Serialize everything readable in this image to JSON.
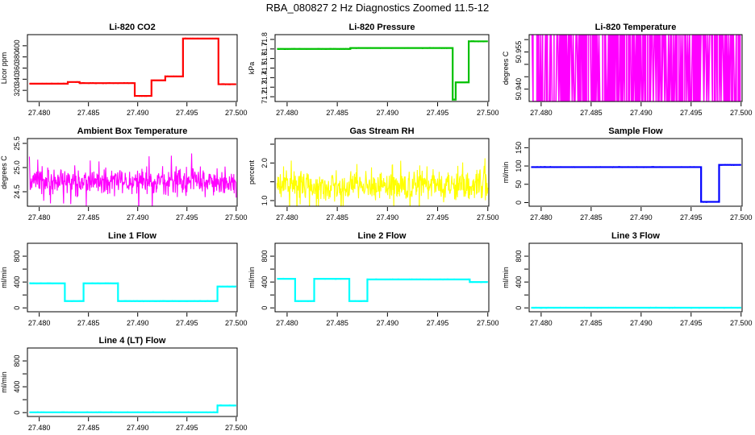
{
  "title": "RBA_080827  2 Hz Diagnostics Zoomed 11.5-12",
  "colors": {
    "co2": "#ff0000",
    "pressure": "#00c000",
    "temperature": "#ff00ff",
    "box_temp": "#ff00ff",
    "rh": "#ffff00",
    "sample_flow": "#0000ff",
    "line_flow": "#00ffff"
  },
  "chart_data": [
    {
      "type": "line",
      "title": "Li-820 CO2",
      "ylabel": "Licor ppm",
      "xlim": [
        27.4788,
        27.5001
      ],
      "ylim": [
        300,
        420
      ],
      "xticks": [
        "27.480",
        "27.485",
        "27.490",
        "27.495",
        "27.500"
      ],
      "yticks": [
        "320",
        "340",
        "360",
        "380",
        "400"
      ],
      "series": [
        {
          "color": "#ff0000",
          "segments": [
            {
              "x0": 27.479,
              "x1": 27.4829,
              "y": 332
            },
            {
              "x0": 27.4829,
              "x1": 27.4841,
              "y": 335
            },
            {
              "x0": 27.4841,
              "x1": 27.4897,
              "y": 333
            },
            {
              "x0": 27.4897,
              "x1": 27.4914,
              "y": 310
            },
            {
              "x0": 27.4914,
              "x1": 27.4928,
              "y": 338
            },
            {
              "x0": 27.4928,
              "x1": 27.4946,
              "y": 345
            },
            {
              "x0": 27.4946,
              "x1": 27.4982,
              "y": 413
            },
            {
              "x0": 27.4982,
              "x1": 27.5,
              "y": 331
            }
          ]
        }
      ]
    },
    {
      "type": "line",
      "title": "Li-820 Pressure",
      "ylabel": "kPa",
      "xlim": [
        27.4788,
        27.5001
      ],
      "ylim": [
        71.15,
        71.85
      ],
      "xticks": [
        "27.480",
        "27.485",
        "27.490",
        "27.495",
        "27.500"
      ],
      "yticks": [
        "71.2",
        "71.3",
        "71.4",
        "71.5",
        "71.6",
        "71.7",
        "71.8"
      ],
      "series": [
        {
          "color": "#00c000",
          "segments": [
            {
              "x0": 27.479,
              "x1": 27.4863,
              "y": 71.7
            },
            {
              "x0": 27.4863,
              "x1": 27.4965,
              "y": 71.71
            },
            {
              "x0": 27.4965,
              "x1": 27.4968,
              "y": 71.17
            },
            {
              "x0": 27.4968,
              "x1": 27.4981,
              "y": 71.35
            },
            {
              "x0": 27.4981,
              "x1": 27.4986,
              "y": 71.78
            },
            {
              "x0": 27.4986,
              "x1": 27.5,
              "y": 71.78
            }
          ]
        }
      ]
    },
    {
      "type": "line",
      "title": "Li-820 Temperature",
      "ylabel": "degrees C",
      "xlim": [
        27.4788,
        27.5001
      ],
      "ylim": [
        50.935,
        50.962
      ],
      "xticks": [
        "27.480",
        "27.485",
        "27.490",
        "27.495",
        "27.500"
      ],
      "yticks": [
        "50.940",
        "50.945",
        "50.950",
        "50.955",
        "50.960"
      ],
      "yticks_shown": [
        "50.940",
        "50.955"
      ],
      "series": [
        {
          "color": "#ff00ff",
          "low": 50.935,
          "high": 50.962,
          "toggle": true
        }
      ]
    },
    {
      "type": "line",
      "title": "Ambient Box Temperature",
      "ylabel": "degrees C",
      "xlim": [
        27.4788,
        27.5001
      ],
      "ylim": [
        24.2,
        25.6
      ],
      "xticks": [
        "27.480",
        "27.485",
        "27.490",
        "27.495",
        "27.500"
      ],
      "yticks": [
        "24.5",
        "25.0",
        "25.5"
      ],
      "series": [
        {
          "color": "#ff00ff",
          "mean": 24.7,
          "spread": 0.85,
          "noise": true
        }
      ]
    },
    {
      "type": "line",
      "title": "Gas Stream RH",
      "ylabel": "percent",
      "xlim": [
        27.4788,
        27.5001
      ],
      "ylim": [
        0.85,
        2.65
      ],
      "xticks": [
        "27.480",
        "27.485",
        "27.490",
        "27.495",
        "27.500"
      ],
      "yticks": [
        "1.0",
        "1.5",
        "2.0",
        "2.5"
      ],
      "yticks_shown": [
        "1.0",
        "2.0"
      ],
      "series": [
        {
          "color": "#ffff00",
          "mean": 1.4,
          "spread": 1.2,
          "noise": true
        }
      ]
    },
    {
      "type": "line",
      "title": "Sample Flow",
      "ylabel": "ml/min",
      "xlim": [
        27.4788,
        27.5001
      ],
      "ylim": [
        -10,
        175
      ],
      "xticks": [
        "27.480",
        "27.485",
        "27.490",
        "27.495",
        "27.500"
      ],
      "yticks": [
        "0",
        "50",
        "100",
        "150"
      ],
      "series": [
        {
          "color": "#0000ff",
          "segments": [
            {
              "x0": 27.479,
              "x1": 27.496,
              "y": 97
            },
            {
              "x0": 27.496,
              "x1": 27.4978,
              "y": 2
            },
            {
              "x0": 27.4978,
              "x1": 27.5,
              "y": 103
            }
          ]
        }
      ]
    },
    {
      "type": "line",
      "title": "Line 1 Flow",
      "ylabel": "ml/min",
      "xlim": [
        27.4788,
        27.5001
      ],
      "ylim": [
        -60,
        1000
      ],
      "xticks": [
        "27.480",
        "27.485",
        "27.490",
        "27.495",
        "27.500"
      ],
      "yticks": [
        "0",
        "200",
        "400",
        "600",
        "800"
      ],
      "yticks_shown": [
        "0",
        "400",
        "800"
      ],
      "series": [
        {
          "color": "#00ffff",
          "segments": [
            {
              "x0": 27.479,
              "x1": 27.4826,
              "y": 380
            },
            {
              "x0": 27.4826,
              "x1": 27.4845,
              "y": 105
            },
            {
              "x0": 27.4845,
              "x1": 27.488,
              "y": 380
            },
            {
              "x0": 27.488,
              "x1": 27.4981,
              "y": 105
            },
            {
              "x0": 27.4981,
              "x1": 27.5,
              "y": 330
            }
          ]
        }
      ]
    },
    {
      "type": "line",
      "title": "Line 2 Flow",
      "ylabel": "ml/min",
      "xlim": [
        27.4788,
        27.5001
      ],
      "ylim": [
        -60,
        1000
      ],
      "xticks": [
        "27.480",
        "27.485",
        "27.490",
        "27.495",
        "27.500"
      ],
      "yticks": [
        "0",
        "200",
        "400",
        "600",
        "800"
      ],
      "yticks_shown": [
        "0",
        "400",
        "800"
      ],
      "series": [
        {
          "color": "#00ffff",
          "segments": [
            {
              "x0": 27.479,
              "x1": 27.4808,
              "y": 450
            },
            {
              "x0": 27.4808,
              "x1": 27.4827,
              "y": 105
            },
            {
              "x0": 27.4827,
              "x1": 27.4862,
              "y": 450
            },
            {
              "x0": 27.4862,
              "x1": 27.488,
              "y": 105
            },
            {
              "x0": 27.488,
              "x1": 27.4982,
              "y": 440
            },
            {
              "x0": 27.4982,
              "x1": 27.5,
              "y": 400
            }
          ]
        }
      ]
    },
    {
      "type": "line",
      "title": "Line 3 Flow",
      "ylabel": "ml/min",
      "xlim": [
        27.4788,
        27.5001
      ],
      "ylim": [
        -60,
        1000
      ],
      "xticks": [
        "27.480",
        "27.485",
        "27.490",
        "27.495",
        "27.500"
      ],
      "yticks": [
        "0",
        "200",
        "400",
        "600",
        "800"
      ],
      "yticks_shown": [
        "0",
        "400",
        "800"
      ],
      "series": [
        {
          "color": "#00ffff",
          "segments": [
            {
              "x0": 27.479,
              "x1": 27.5,
              "y": 2
            }
          ]
        }
      ]
    },
    {
      "type": "line",
      "title": "Line 4 (LT) Flow",
      "ylabel": "ml/min",
      "xlim": [
        27.4788,
        27.5001
      ],
      "ylim": [
        -60,
        1000
      ],
      "xticks": [
        "27.480",
        "27.485",
        "27.490",
        "27.495",
        "27.500"
      ],
      "yticks": [
        "0",
        "200",
        "400",
        "600",
        "800"
      ],
      "yticks_shown": [
        "0",
        "400",
        "800"
      ],
      "series": [
        {
          "color": "#00ffff",
          "segments": [
            {
              "x0": 27.479,
              "x1": 27.4981,
              "y": 5
            },
            {
              "x0": 27.4981,
              "x1": 27.5,
              "y": 110
            }
          ]
        }
      ]
    }
  ]
}
